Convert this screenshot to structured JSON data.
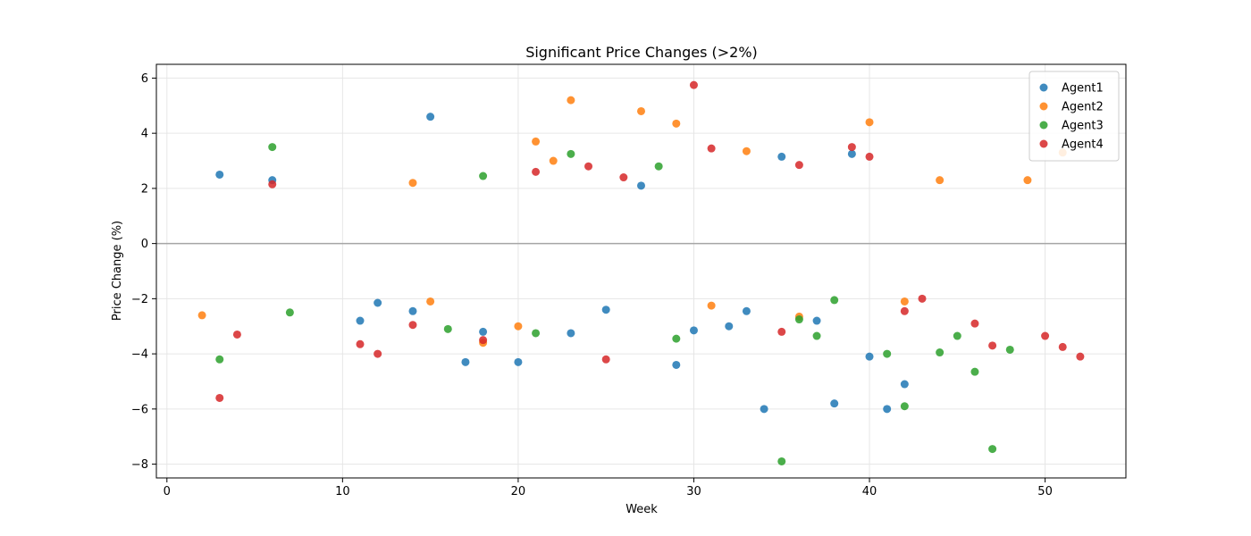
{
  "chart_data": {
    "type": "scatter",
    "title": "Significant Price Changes (>2%)",
    "xlabel": "Week",
    "ylabel": "Price Change (%)",
    "xlim": [
      -0.6,
      54.6
    ],
    "ylim": [
      -8.5,
      6.5
    ],
    "xticks": [
      0,
      10,
      20,
      30,
      40,
      50
    ],
    "yticks": [
      -8,
      -6,
      -4,
      -2,
      0,
      2,
      4,
      6
    ],
    "grid": true,
    "zero_line": 0,
    "legend": "top-right",
    "series": [
      {
        "name": "Agent1",
        "color": "#1f77b4",
        "points": [
          [
            3,
            2.5
          ],
          [
            6,
            2.3
          ],
          [
            11,
            -2.8
          ],
          [
            12,
            -2.15
          ],
          [
            14,
            -2.45
          ],
          [
            15,
            4.6
          ],
          [
            17,
            -4.3
          ],
          [
            18,
            -3.2
          ],
          [
            20,
            -4.3
          ],
          [
            23,
            -3.25
          ],
          [
            25,
            -2.4
          ],
          [
            27,
            2.1
          ],
          [
            29,
            -4.4
          ],
          [
            30,
            -3.15
          ],
          [
            32,
            -3.0
          ],
          [
            33,
            -2.45
          ],
          [
            34,
            -6.0
          ],
          [
            35,
            3.15
          ],
          [
            37,
            -2.8
          ],
          [
            38,
            -5.8
          ],
          [
            39,
            3.25
          ],
          [
            40,
            -4.1
          ],
          [
            41,
            -6.0
          ],
          [
            42,
            -5.1
          ]
        ]
      },
      {
        "name": "Agent2",
        "color": "#ff7f0e",
        "points": [
          [
            2,
            -2.6
          ],
          [
            14,
            2.2
          ],
          [
            15,
            -2.1
          ],
          [
            18,
            -3.6
          ],
          [
            20,
            -3.0
          ],
          [
            21,
            3.7
          ],
          [
            22,
            3.0
          ],
          [
            23,
            5.2
          ],
          [
            27,
            4.8
          ],
          [
            29,
            4.35
          ],
          [
            31,
            -2.25
          ],
          [
            33,
            3.35
          ],
          [
            36,
            -2.65
          ],
          [
            40,
            4.4
          ],
          [
            42,
            -2.1
          ],
          [
            44,
            2.3
          ],
          [
            49,
            2.3
          ],
          [
            51,
            3.3
          ]
        ]
      },
      {
        "name": "Agent3",
        "color": "#2ca02c",
        "points": [
          [
            3,
            -4.2
          ],
          [
            6,
            3.5
          ],
          [
            7,
            -2.5
          ],
          [
            16,
            -3.1
          ],
          [
            18,
            2.45
          ],
          [
            21,
            -3.25
          ],
          [
            23,
            3.25
          ],
          [
            28,
            2.8
          ],
          [
            29,
            -3.45
          ],
          [
            35,
            -7.9
          ],
          [
            36,
            -2.75
          ],
          [
            37,
            -3.35
          ],
          [
            38,
            -2.05
          ],
          [
            41,
            -4.0
          ],
          [
            42,
            -5.9
          ],
          [
            44,
            -3.95
          ],
          [
            45,
            -3.35
          ],
          [
            46,
            -4.65
          ],
          [
            47,
            -7.45
          ],
          [
            48,
            -3.85
          ]
        ]
      },
      {
        "name": "Agent4",
        "color": "#d62728",
        "points": [
          [
            3,
            -5.6
          ],
          [
            4,
            -3.3
          ],
          [
            6,
            2.15
          ],
          [
            11,
            -3.65
          ],
          [
            12,
            -4.0
          ],
          [
            14,
            -2.95
          ],
          [
            18,
            -3.5
          ],
          [
            21,
            2.6
          ],
          [
            24,
            2.8
          ],
          [
            25,
            -4.2
          ],
          [
            26,
            2.4
          ],
          [
            30,
            5.75
          ],
          [
            31,
            3.45
          ],
          [
            35,
            -3.2
          ],
          [
            36,
            2.85
          ],
          [
            39,
            3.5
          ],
          [
            40,
            3.15
          ],
          [
            42,
            -2.45
          ],
          [
            43,
            -2.0
          ],
          [
            46,
            -2.9
          ],
          [
            47,
            -3.7
          ],
          [
            50,
            -3.35
          ],
          [
            51,
            -3.75
          ],
          [
            52,
            -4.1
          ]
        ]
      }
    ]
  }
}
